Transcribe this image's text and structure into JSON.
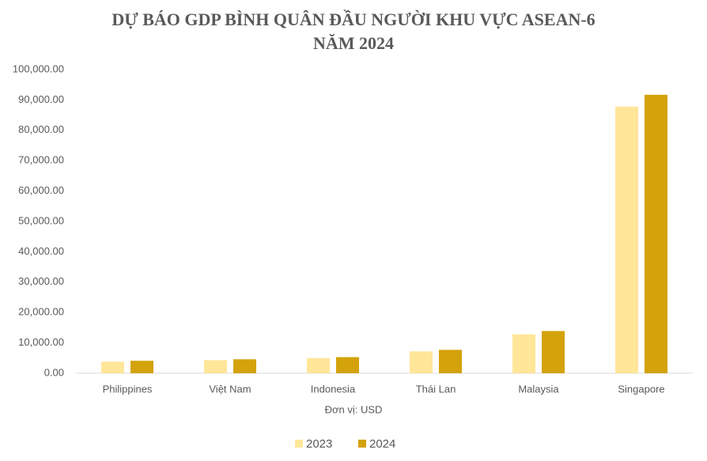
{
  "chart_data": {
    "type": "bar",
    "title": [
      "DỰ BÁO GDP BÌNH QUÂN ĐẦU NGƯỜI KHU VỰC ASEAN-6",
      "NĂM 2024"
    ],
    "x_label": "Đơn vị: USD",
    "categories": [
      "Philippines",
      "Việt Nam",
      "Indonesia",
      "Thái Lan",
      "Malaysia",
      "Singapore"
    ],
    "series": [
      {
        "name": "2023",
        "color": "#ffe699",
        "values": [
          3800,
          4300,
          5000,
          7200,
          12800,
          87800
        ]
      },
      {
        "name": "2024",
        "color": "#d4a20a",
        "values": [
          4100,
          4600,
          5300,
          7700,
          13900,
          91700
        ]
      }
    ],
    "ylim": [
      0,
      100000
    ],
    "yticks": [
      {
        "value": 0,
        "label": "0.00"
      },
      {
        "value": 10000,
        "label": "10,000.00"
      },
      {
        "value": 20000,
        "label": "20,000.00"
      },
      {
        "value": 30000,
        "label": "30,000.00"
      },
      {
        "value": 40000,
        "label": "40,000.00"
      },
      {
        "value": 50000,
        "label": "50,000.00"
      },
      {
        "value": 60000,
        "label": "60,000.00"
      },
      {
        "value": 70000,
        "label": "70,000.00"
      },
      {
        "value": 80000,
        "label": "80,000.00"
      },
      {
        "value": 90000,
        "label": "90,000.00"
      },
      {
        "value": 100000,
        "label": "100,000.00"
      }
    ],
    "grid": false,
    "legend": "bottom"
  }
}
